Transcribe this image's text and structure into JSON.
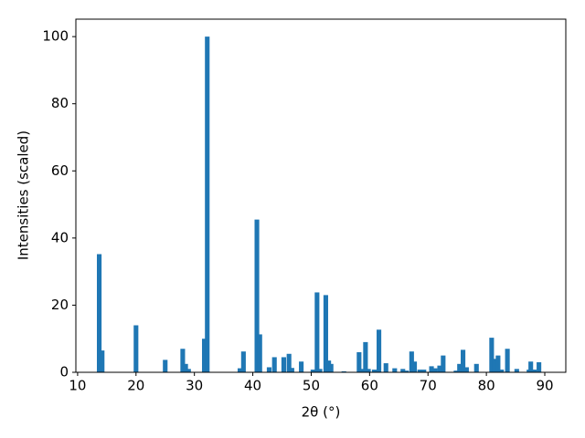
{
  "chart_data": {
    "type": "bar",
    "xlabel": "2θ (°)",
    "ylabel": "Intensities (scaled)",
    "color": "#1f77b4",
    "x": [
      13.7,
      14.2,
      20,
      25,
      28,
      28.5,
      29,
      31.7,
      32.2,
      37.8,
      38.4,
      40.7,
      41.2,
      42.8,
      43.7,
      45.3,
      46.2,
      46.7,
      48.3,
      50.3,
      51,
      51.5,
      52.5,
      53,
      53.4,
      55.6,
      58.2,
      58.7,
      59.3,
      59.8,
      60.8,
      61.6,
      62.8,
      64.3,
      65.7,
      66.3,
      67.2,
      67.7,
      68.6,
      69.3,
      70.6,
      71.2,
      72,
      72.6,
      74.8,
      75.4,
      76,
      76.6,
      78.3,
      80.9,
      81.4,
      82,
      82.6,
      83.6,
      85.2,
      87.3,
      87.6,
      88.2,
      89
    ],
    "values": [
      35.2,
      6.5,
      14,
      3.7,
      7,
      2.5,
      1,
      10,
      100,
      1.2,
      6.2,
      45.5,
      11.3,
      1.5,
      4.5,
      4.5,
      5.5,
      1.3,
      3.2,
      0.8,
      23.8,
      1,
      23,
      3.5,
      2.5,
      0.3,
      6,
      1,
      9,
      1,
      0.8,
      12.7,
      2.7,
      1.2,
      1,
      0.5,
      6.2,
      3.2,
      0.8,
      0.8,
      1.8,
      1.2,
      2,
      5,
      0.5,
      2.5,
      6.7,
      1.5,
      2.5,
      10.3,
      4,
      5,
      0.8,
      7,
      1,
      0.8,
      3.2,
      0.8,
      3
    ],
    "xlim": [
      9.7,
      93.6
    ],
    "ylim": [
      0,
      105.2
    ],
    "xticks": [
      10,
      20,
      30,
      40,
      50,
      60,
      70,
      80,
      90
    ],
    "yticks": [
      0,
      20,
      40,
      60,
      80,
      100
    ]
  }
}
